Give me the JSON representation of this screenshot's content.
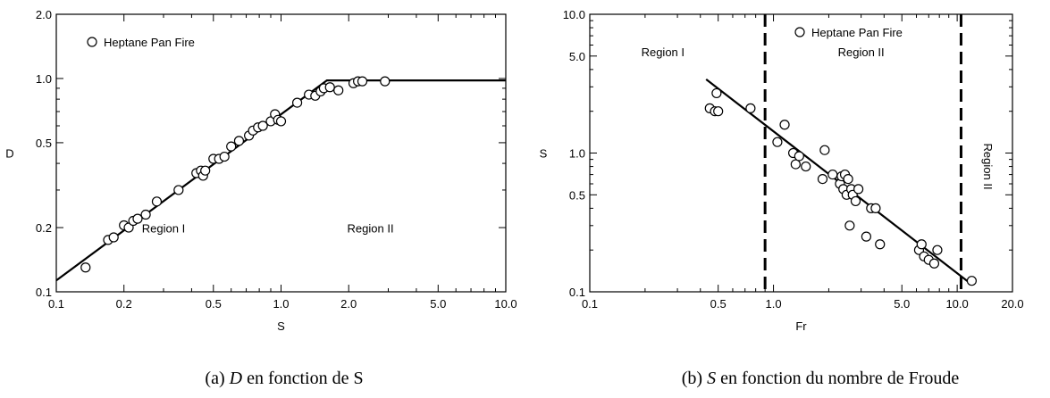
{
  "chart_data": [
    {
      "type": "scatter",
      "caption_prefix": "(a) ",
      "caption_var": "D",
      "caption_rest": " en fonction de S",
      "xlabel": "S",
      "ylabel": "D",
      "xscale": "log",
      "yscale": "log",
      "xlim": [
        0.1,
        10.0
      ],
      "ylim": [
        0.1,
        2.0
      ],
      "xticks": [
        0.1,
        0.2,
        0.5,
        1.0,
        2.0,
        5.0,
        10.0
      ],
      "xtick_labels": [
        "0.1",
        "0.2",
        "0.5",
        "1.0",
        "2.0",
        "5.0",
        "10.0"
      ],
      "yticks": [
        0.1,
        0.2,
        0.5,
        1.0,
        2.0
      ],
      "ytick_labels": [
        "0.1",
        "0.2",
        "0.5",
        "1.0",
        "2.0"
      ],
      "legend": {
        "label": "Heptane Pan Fire",
        "position": "top-left"
      },
      "annotations": [
        {
          "text": "Region I",
          "x": 0.3,
          "y": 0.19
        },
        {
          "text": "Region II",
          "x": 2.5,
          "y": 0.19
        }
      ],
      "fit_line": {
        "x": [
          0.1,
          1.6,
          10.0
        ],
        "y": [
          0.113,
          0.98,
          0.98
        ]
      },
      "points": {
        "x": [
          0.135,
          0.17,
          0.18,
          0.2,
          0.21,
          0.22,
          0.23,
          0.25,
          0.28,
          0.35,
          0.42,
          0.44,
          0.45,
          0.46,
          0.5,
          0.53,
          0.56,
          0.6,
          0.65,
          0.72,
          0.75,
          0.79,
          0.83,
          0.9,
          0.94,
          0.97,
          1.0,
          1.18,
          1.33,
          1.42,
          1.5,
          1.55,
          1.65,
          1.8,
          2.1,
          2.2,
          2.3,
          2.9
        ],
        "y": [
          0.13,
          0.175,
          0.18,
          0.205,
          0.2,
          0.215,
          0.22,
          0.23,
          0.265,
          0.3,
          0.36,
          0.37,
          0.35,
          0.37,
          0.42,
          0.42,
          0.43,
          0.48,
          0.51,
          0.54,
          0.57,
          0.59,
          0.6,
          0.63,
          0.68,
          0.64,
          0.63,
          0.77,
          0.84,
          0.83,
          0.87,
          0.9,
          0.91,
          0.88,
          0.95,
          0.97,
          0.97,
          0.97
        ]
      }
    },
    {
      "type": "scatter",
      "caption_prefix": "(b) ",
      "caption_var": "S",
      "caption_rest": " en fonction du nombre de Froude",
      "xlabel": "Fr",
      "ylabel": "S",
      "xscale": "log",
      "yscale": "log",
      "xlim": [
        0.1,
        20.0
      ],
      "ylim": [
        0.1,
        10.0
      ],
      "xticks": [
        0.1,
        0.5,
        1.0,
        5.0,
        10.0,
        20.0
      ],
      "xtick_labels": [
        "0.1",
        "0.5",
        "1.0",
        "5.0",
        "10.0",
        "20.0"
      ],
      "yticks": [
        0.1,
        0.5,
        1.0,
        5.0,
        10.0
      ],
      "ytick_labels": [
        "0.1",
        "0.5",
        "1.0",
        "5.0",
        "10.0"
      ],
      "legend": {
        "label": "Heptane Pan Fire",
        "position": "top-center"
      },
      "annotations": [
        {
          "text": "Region I",
          "x": 0.25,
          "y": 5.0
        },
        {
          "text": "Region II",
          "x": 3.0,
          "y": 5.0
        },
        {
          "text": "Region II",
          "x": 14.0,
          "y": 0.8,
          "rotate": 90
        }
      ],
      "vlines": [
        0.9,
        10.5
      ],
      "fit_line": {
        "x": [
          0.43,
          12.0
        ],
        "y": [
          3.4,
          0.113
        ]
      },
      "points": {
        "x": [
          0.45,
          0.48,
          0.49,
          0.5,
          0.75,
          1.05,
          1.15,
          1.28,
          1.32,
          1.38,
          1.5,
          1.85,
          1.9,
          2.1,
          2.3,
          2.35,
          2.4,
          2.45,
          2.5,
          2.55,
          2.6,
          2.65,
          2.7,
          2.8,
          2.9,
          3.2,
          3.4,
          3.6,
          3.8,
          6.2,
          6.4,
          6.6,
          7.0,
          7.5,
          7.8,
          12.0
        ],
        "y": [
          2.1,
          2.0,
          2.7,
          2.0,
          2.1,
          1.2,
          1.6,
          1.0,
          0.83,
          0.95,
          0.8,
          0.65,
          1.05,
          0.7,
          0.6,
          0.68,
          0.55,
          0.7,
          0.5,
          0.65,
          0.3,
          0.55,
          0.5,
          0.45,
          0.55,
          0.25,
          0.4,
          0.4,
          0.22,
          0.2,
          0.22,
          0.18,
          0.17,
          0.16,
          0.2,
          0.12
        ]
      }
    }
  ]
}
